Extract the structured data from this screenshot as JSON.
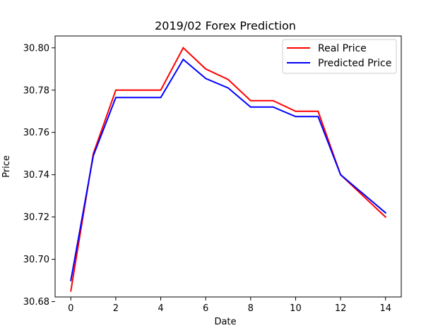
{
  "chart_data": {
    "type": "line",
    "title": "2019/02 Forex Prediction",
    "xlabel": "Date",
    "ylabel": "Price",
    "xlim": [
      -0.7,
      14.7
    ],
    "ylim": [
      30.6822,
      30.8056
    ],
    "xticks": [
      0,
      2,
      4,
      6,
      8,
      10,
      12,
      14
    ],
    "xtick_labels": [
      "0",
      "2",
      "4",
      "6",
      "8",
      "10",
      "12",
      "14"
    ],
    "yticks": [
      30.68,
      30.7,
      30.72,
      30.74,
      30.76,
      30.78,
      30.8
    ],
    "ytick_labels": [
      "30.68",
      "30.70",
      "30.72",
      "30.74",
      "30.76",
      "30.78",
      "30.80"
    ],
    "grid": false,
    "legend_position": "top-right",
    "x": [
      0,
      1,
      2,
      3,
      4,
      5,
      6,
      7,
      8,
      9,
      10,
      11,
      12,
      13,
      14
    ],
    "series": [
      {
        "name": "Real Price",
        "color": "#ff0000",
        "values": [
          30.685,
          30.75,
          30.78,
          30.78,
          30.78,
          30.8,
          30.79,
          30.785,
          30.775,
          30.775,
          30.77,
          30.77,
          30.74,
          30.73,
          30.72
        ]
      },
      {
        "name": "Predicted Price",
        "color": "#0000ff",
        "values": [
          30.69,
          30.749,
          30.7765,
          30.7765,
          30.7765,
          30.7945,
          30.7855,
          30.781,
          30.772,
          30.772,
          30.7675,
          30.7675,
          30.74,
          30.731,
          30.722
        ]
      }
    ]
  }
}
